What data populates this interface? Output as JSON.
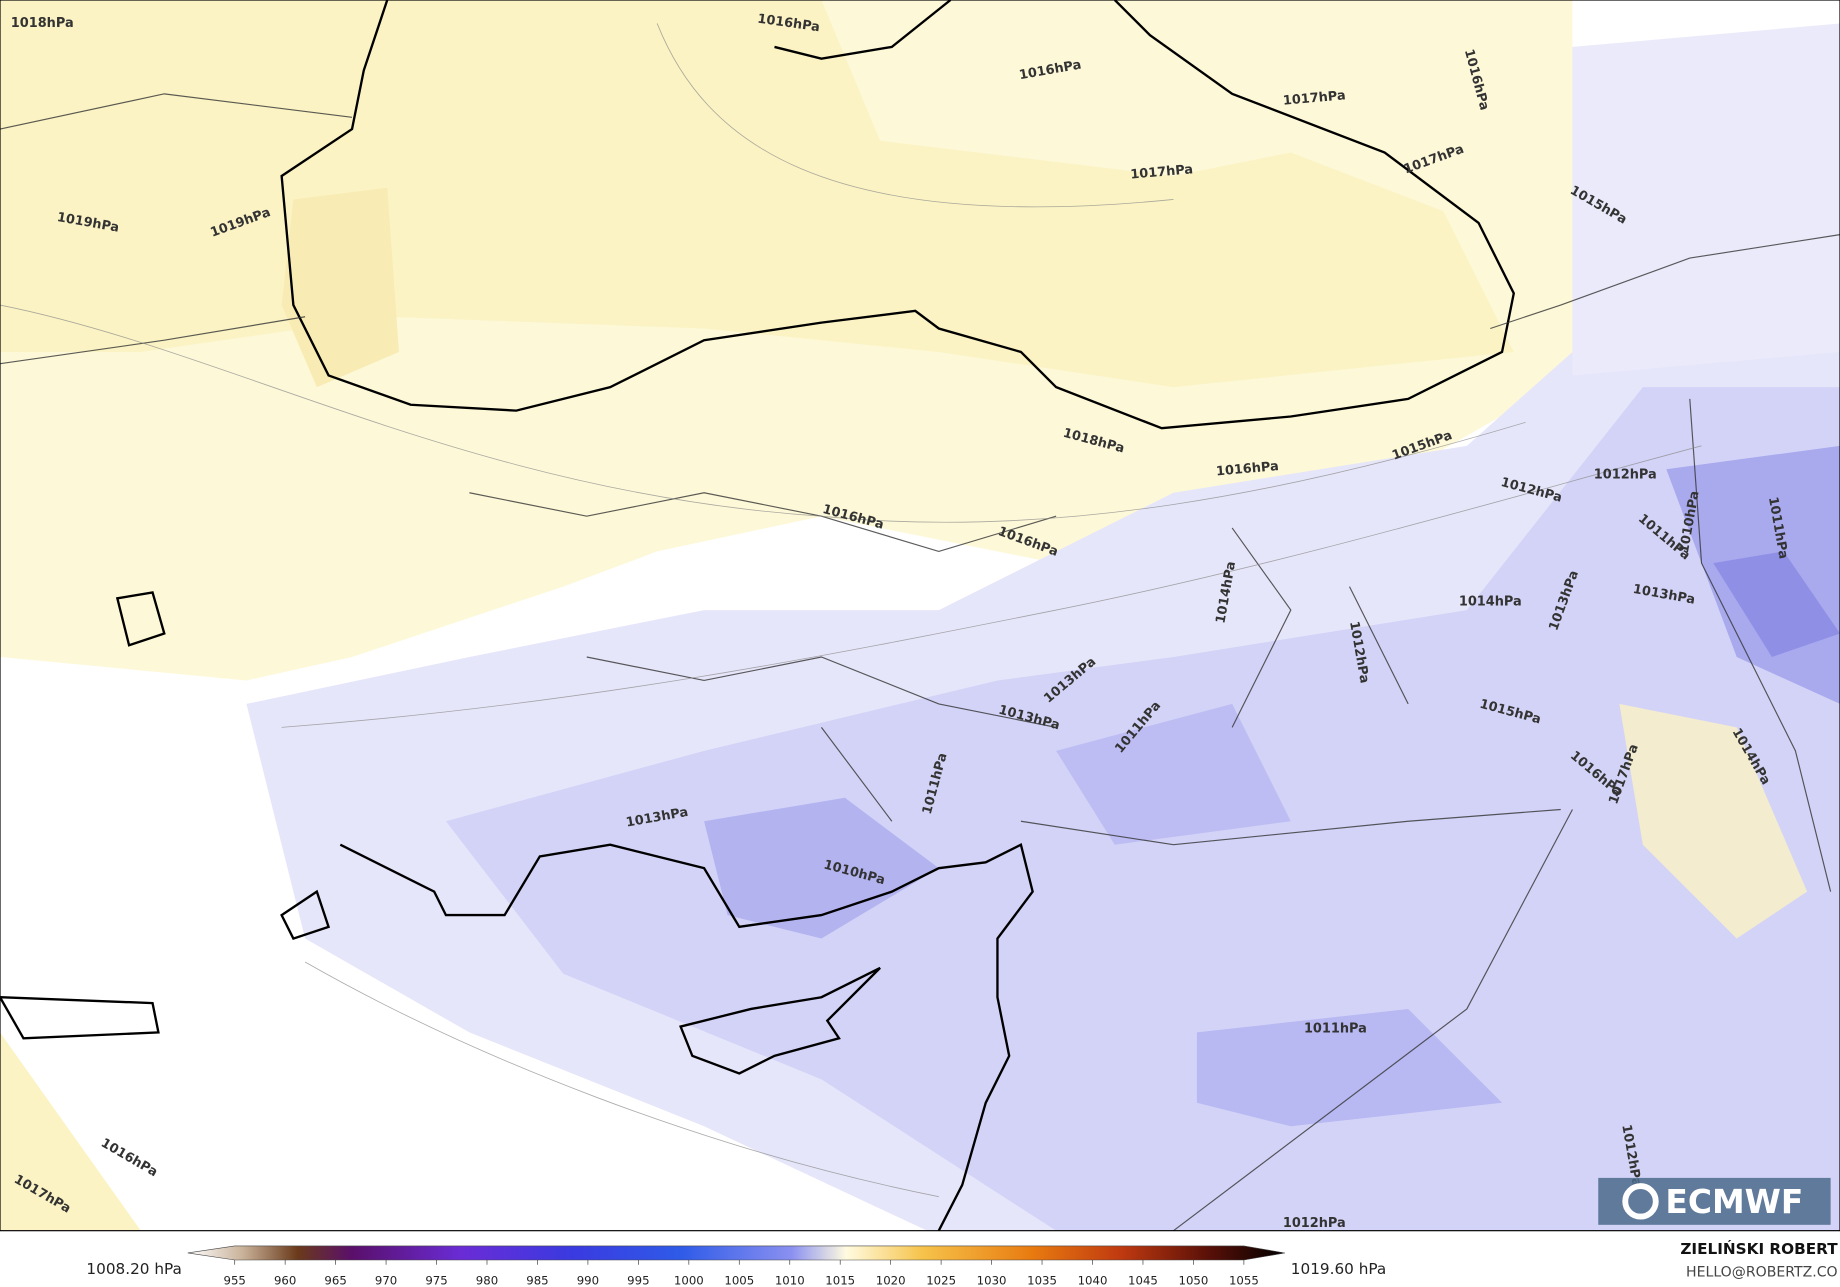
{
  "map": {
    "isobar_labels": [
      "1018hPa",
      "1016hPa",
      "1016hPa",
      "1016hPa",
      "1017hPa",
      "1017hPa",
      "1017hPa",
      "1015hPa",
      "1019hPa",
      "1019hPa",
      "1018hPa",
      "1015hPa",
      "1016hPa",
      "1012hPa",
      "1012hPa",
      "1016hPa",
      "1016hPa",
      "1011hPa",
      "1010hPa",
      "1011hPa",
      "1014hPa",
      "1013hPa",
      "1014hPa",
      "1013hPa",
      "1012hPa",
      "1013hPa",
      "1013hPa",
      "1015hPa",
      "1011hPa",
      "1017hPa",
      "1016hPa",
      "1014hPa",
      "1011hPa",
      "1013hPa",
      "1010hPa",
      "1011hPa",
      "1016hPa",
      "1017hPa",
      "1012hPa",
      "1012hPa"
    ],
    "logo": "ECMWF"
  },
  "colorbar": {
    "min_label": "1008.20 hPa",
    "max_label": "1019.60 hPa",
    "ticks": [
      955,
      960,
      965,
      970,
      975,
      980,
      985,
      990,
      995,
      1000,
      1005,
      1010,
      1015,
      1020,
      1025,
      1030,
      1035,
      1040,
      1045,
      1050,
      1055
    ]
  },
  "credits": {
    "author": "ZIELIŃSKI ROBERT",
    "contact": "HELLO@ROBERTZ.CO"
  }
}
